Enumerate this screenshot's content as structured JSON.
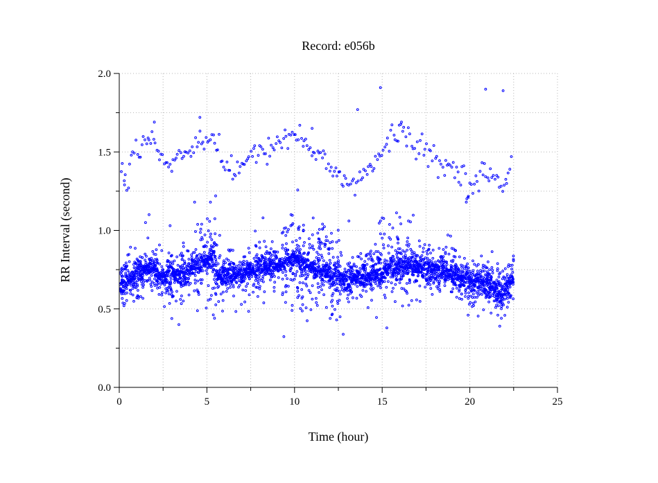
{
  "chart_data": {
    "type": "scatter",
    "title": "Record:  e056b",
    "xlabel": "Time (hour)",
    "ylabel": "RR Interval (second)",
    "xlim": [
      0,
      25
    ],
    "ylim": [
      0,
      2
    ],
    "x_ticks": [
      0,
      5,
      10,
      15,
      20,
      25
    ],
    "x_tick_labels": [
      "0",
      "5",
      "10",
      "15",
      "20",
      "25"
    ],
    "y_ticks": [
      0,
      0.5,
      1,
      1.5,
      2
    ],
    "y_tick_labels": [
      "0.0",
      "0.5",
      "1.0",
      "1.5",
      "2.0"
    ],
    "x_minor_ticks": [
      2.5,
      7.5,
      12.5,
      17.5,
      22.5
    ],
    "y_minor_ticks": [
      0.25,
      0.75,
      1.25,
      1.75
    ],
    "grid": true,
    "marker_color": "#0000ff",
    "trend": [
      [
        0.05,
        0.66
      ],
      [
        0.5,
        0.68
      ],
      [
        1.0,
        0.72
      ],
      [
        1.5,
        0.76
      ],
      [
        2.0,
        0.74
      ],
      [
        2.5,
        0.7
      ],
      [
        3.0,
        0.72
      ],
      [
        3.5,
        0.72
      ],
      [
        4.0,
        0.74
      ],
      [
        4.5,
        0.78
      ],
      [
        5.0,
        0.8
      ],
      [
        5.4,
        0.82
      ],
      [
        5.5,
        0.7
      ],
      [
        6.0,
        0.7
      ],
      [
        6.5,
        0.72
      ],
      [
        7.0,
        0.72
      ],
      [
        7.5,
        0.74
      ],
      [
        8.0,
        0.76
      ],
      [
        8.5,
        0.76
      ],
      [
        9.0,
        0.78
      ],
      [
        9.5,
        0.8
      ],
      [
        10.0,
        0.82
      ],
      [
        10.5,
        0.78
      ],
      [
        11.0,
        0.76
      ],
      [
        11.5,
        0.74
      ],
      [
        12.0,
        0.72
      ],
      [
        12.5,
        0.7
      ],
      [
        13.0,
        0.68
      ],
      [
        13.5,
        0.7
      ],
      [
        14.0,
        0.7
      ],
      [
        14.5,
        0.72
      ],
      [
        15.0,
        0.74
      ],
      [
        15.5,
        0.76
      ],
      [
        16.0,
        0.78
      ],
      [
        16.5,
        0.78
      ],
      [
        17.0,
        0.76
      ],
      [
        17.5,
        0.76
      ],
      [
        18.0,
        0.74
      ],
      [
        18.5,
        0.74
      ],
      [
        19.0,
        0.72
      ],
      [
        19.5,
        0.7
      ],
      [
        20.0,
        0.66
      ],
      [
        20.5,
        0.67
      ],
      [
        21.0,
        0.66
      ],
      [
        21.5,
        0.62
      ],
      [
        21.9,
        0.58
      ],
      [
        22.2,
        0.66
      ],
      [
        22.5,
        0.7
      ]
    ],
    "upper_band": [
      [
        0.1,
        1.42
      ],
      [
        0.3,
        1.36
      ],
      [
        0.5,
        1.3
      ],
      [
        0.7,
        1.48
      ],
      [
        1.0,
        1.52
      ],
      [
        1.3,
        1.55
      ],
      [
        1.6,
        1.58
      ],
      [
        1.9,
        1.62
      ],
      [
        2.2,
        1.48
      ],
      [
        2.6,
        1.46
      ],
      [
        3.0,
        1.4
      ],
      [
        3.4,
        1.48
      ],
      [
        3.8,
        1.5
      ],
      [
        4.2,
        1.55
      ],
      [
        4.6,
        1.58
      ],
      [
        5.0,
        1.6
      ],
      [
        5.4,
        1.58
      ],
      [
        5.8,
        1.48
      ],
      [
        6.2,
        1.4
      ],
      [
        6.6,
        1.36
      ],
      [
        7.0,
        1.42
      ],
      [
        7.5,
        1.46
      ],
      [
        8.0,
        1.48
      ],
      [
        8.5,
        1.52
      ],
      [
        9.0,
        1.56
      ],
      [
        9.5,
        1.6
      ],
      [
        10.0,
        1.62
      ],
      [
        10.5,
        1.58
      ],
      [
        11.0,
        1.5
      ],
      [
        11.5,
        1.46
      ],
      [
        12.0,
        1.42
      ],
      [
        12.5,
        1.36
      ],
      [
        13.0,
        1.32
      ],
      [
        13.5,
        1.28
      ],
      [
        14.0,
        1.36
      ],
      [
        14.5,
        1.42
      ],
      [
        15.0,
        1.5
      ],
      [
        15.5,
        1.58
      ],
      [
        16.0,
        1.64
      ],
      [
        16.5,
        1.58
      ],
      [
        17.0,
        1.52
      ],
      [
        17.5,
        1.5
      ],
      [
        18.0,
        1.46
      ],
      [
        18.5,
        1.42
      ],
      [
        19.0,
        1.4
      ],
      [
        19.5,
        1.36
      ],
      [
        20.0,
        1.3
      ],
      [
        20.5,
        1.34
      ],
      [
        21.0,
        1.36
      ],
      [
        21.5,
        1.3
      ],
      [
        22.0,
        1.28
      ],
      [
        22.3,
        1.42
      ]
    ],
    "outliers": [
      [
        14.9,
        1.91
      ],
      [
        20.9,
        1.9
      ],
      [
        21.9,
        1.89
      ],
      [
        13.6,
        1.77
      ],
      [
        4.6,
        1.72
      ],
      [
        2.0,
        1.69
      ],
      [
        16.1,
        1.69
      ],
      [
        11.0,
        1.65
      ],
      [
        19.8,
        1.18
      ],
      [
        19.9,
        1.21
      ],
      [
        3.4,
        0.4
      ],
      [
        12.4,
        0.43
      ],
      [
        12.6,
        0.45
      ],
      [
        19.9,
        0.46
      ],
      [
        21.6,
        0.46
      ],
      [
        21.8,
        0.44
      ],
      [
        0.3,
        1.29
      ],
      [
        5.2,
        1.18
      ],
      [
        5.5,
        1.22
      ],
      [
        8.2,
        1.08
      ],
      [
        1.5,
        1.05
      ],
      [
        1.7,
        1.1
      ],
      [
        2.9,
        1.03
      ],
      [
        4.3,
        1.18
      ],
      [
        16.5,
        1.06
      ],
      [
        14.9,
        1.06
      ],
      [
        15.0,
        1.08
      ],
      [
        9.8,
        1.1
      ],
      [
        13.1,
        1.06
      ],
      [
        11.6,
        1.04
      ]
    ]
  }
}
